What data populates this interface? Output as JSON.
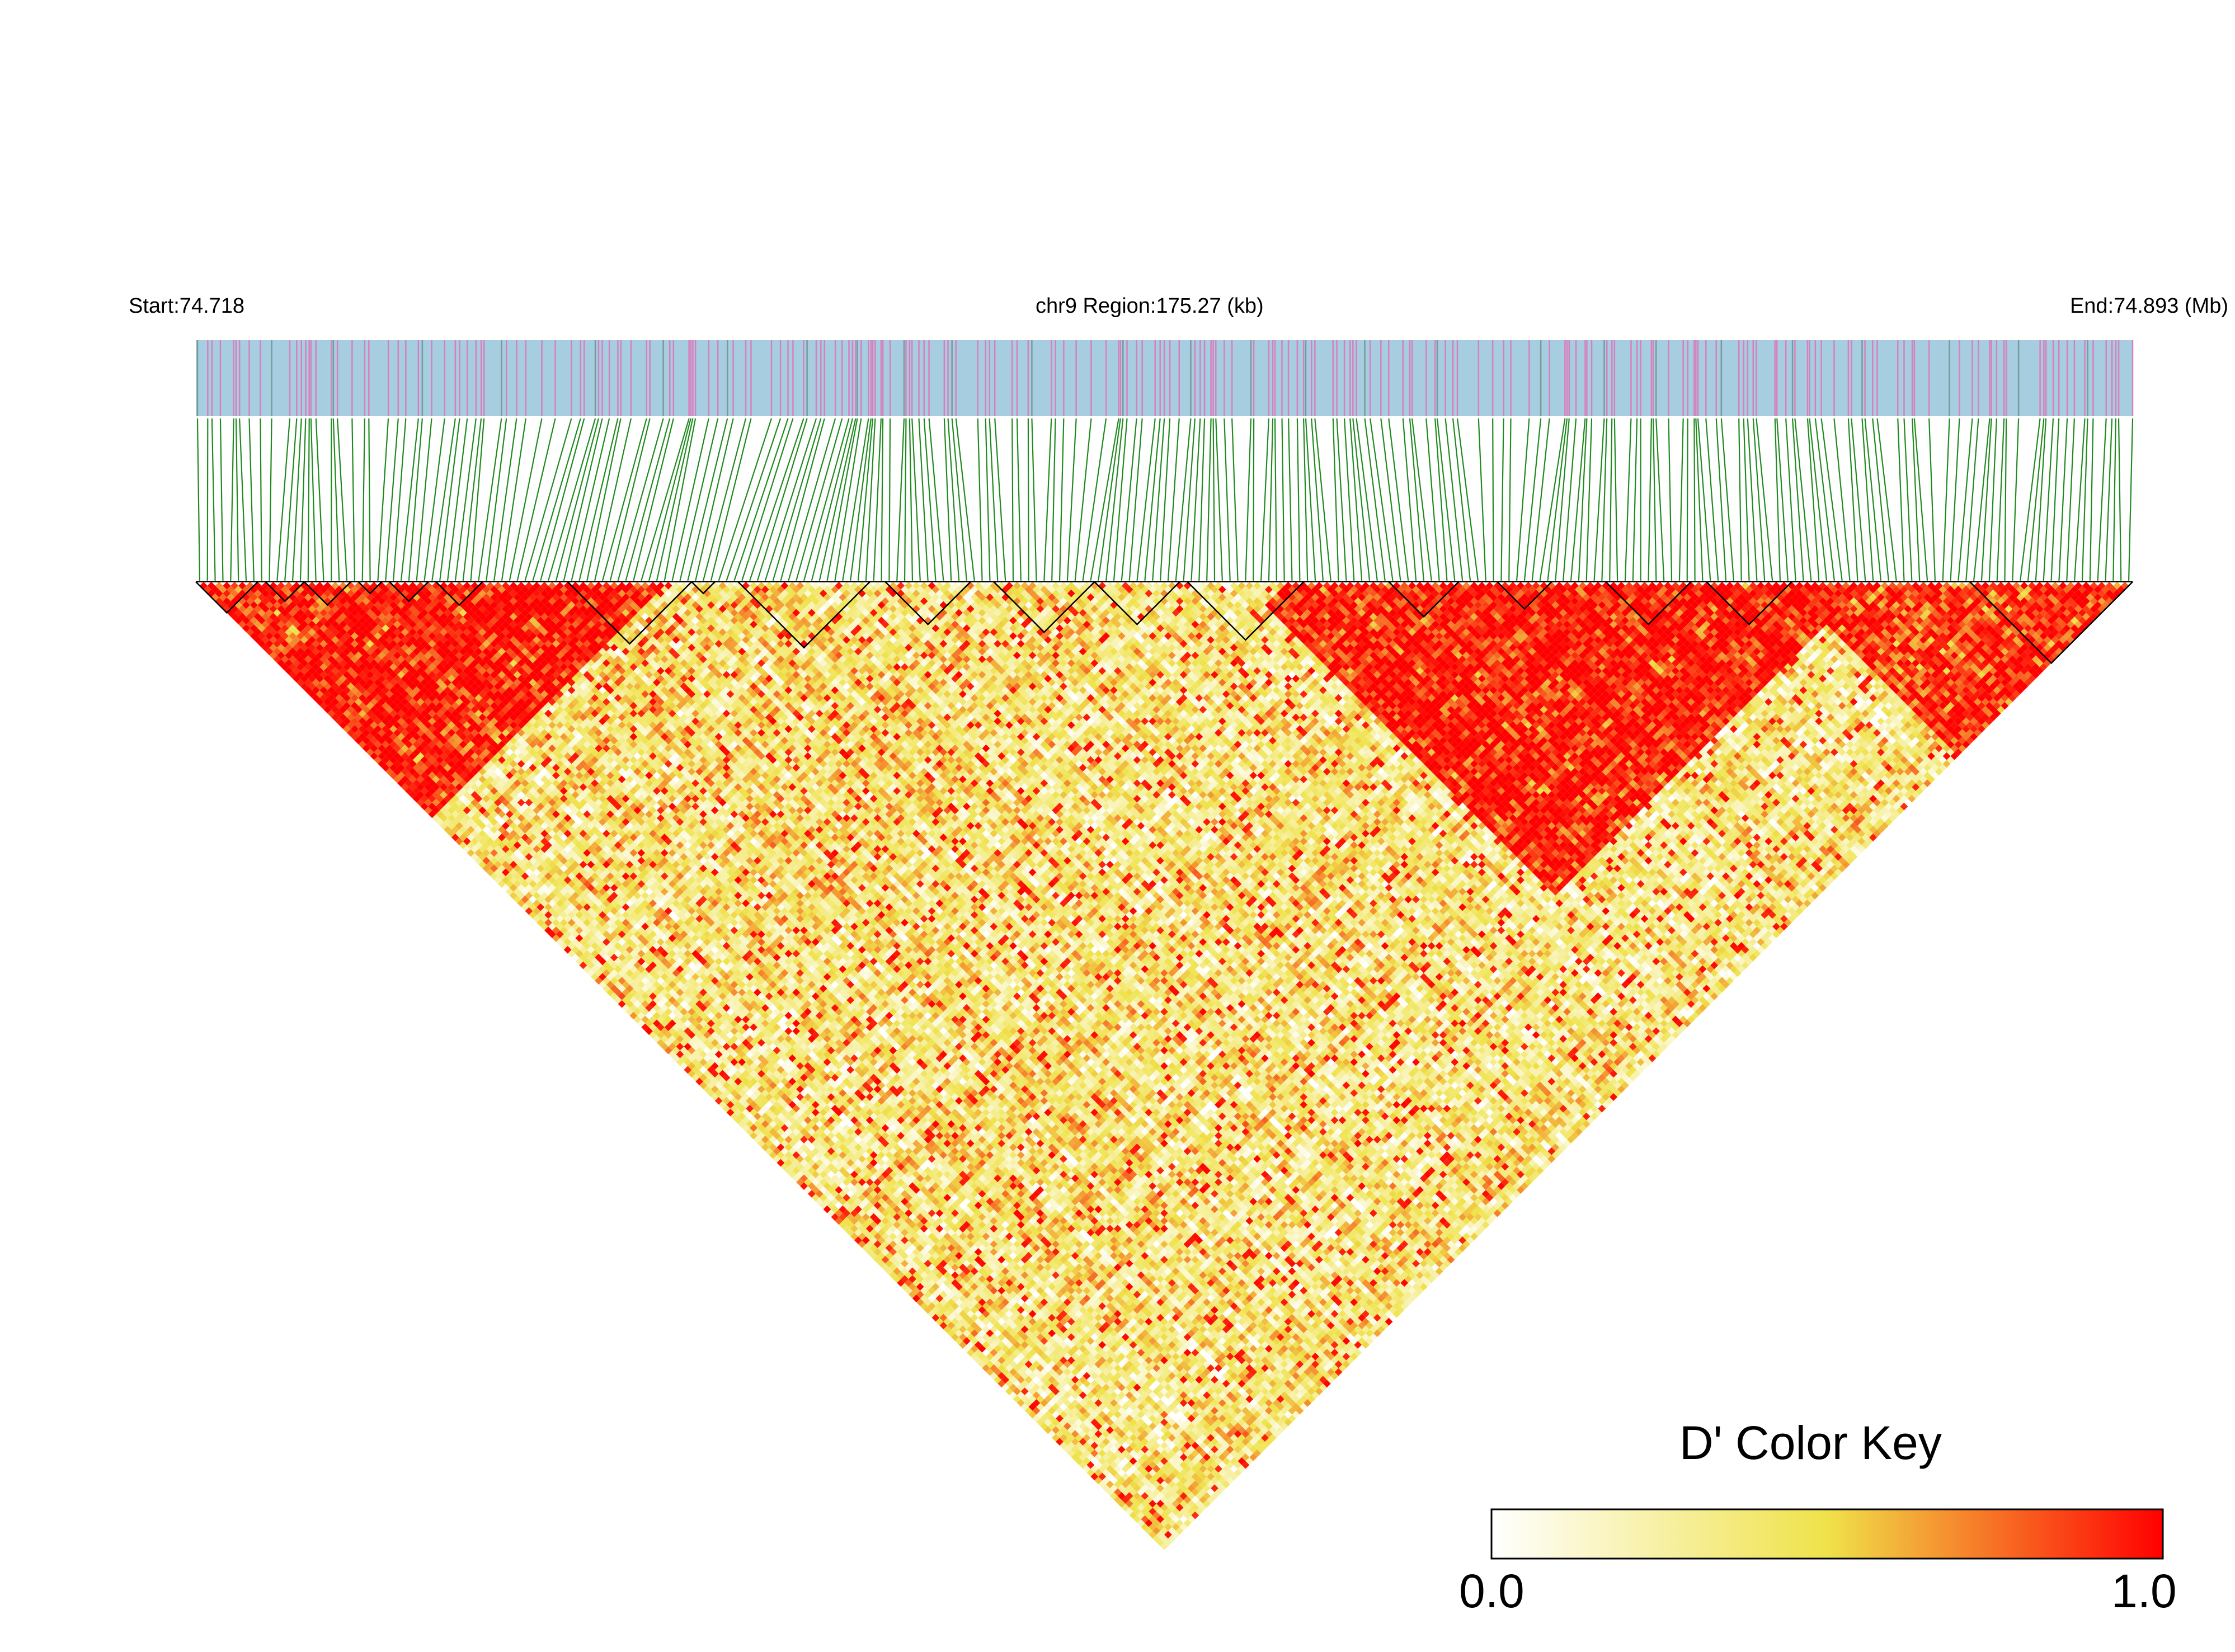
{
  "header": {
    "start": "Start:74.718",
    "region": "chr9 Region:175.27 (kb)",
    "end": "End:74.893 (Mb)"
  },
  "colors": {
    "track_bg": "#a6cde0",
    "snp_marker": "#d97fbf",
    "dense_marker": "#7a9a9a",
    "connector": "#1f8a1f",
    "low": "#ffffff",
    "mid": "#efe24a",
    "high": "#ff0000",
    "block_outline": "#000000"
  },
  "chart_data": {
    "type": "heatmap",
    "measure": "D'",
    "chromosome": "chr9",
    "region_start_mb": 74.718,
    "region_end_mb": 74.893,
    "region_length_kb": 175.27,
    "snp_count": 250,
    "value_range": [
      0.0,
      1.0
    ],
    "color_scale": [
      "#ffffff",
      "#efe24a",
      "#ff0000"
    ],
    "block_snp_ranges": [
      [
        0,
        8
      ],
      [
        9,
        14
      ],
      [
        14,
        20
      ],
      [
        21,
        24
      ],
      [
        25,
        30
      ],
      [
        31,
        37
      ],
      [
        48,
        64
      ],
      [
        64,
        67
      ],
      [
        70,
        87
      ],
      [
        89,
        100
      ],
      [
        103,
        116
      ],
      [
        116,
        127
      ],
      [
        128,
        143
      ],
      [
        154,
        163
      ],
      [
        168,
        175
      ],
      [
        182,
        193
      ],
      [
        195,
        206
      ],
      [
        229,
        250
      ]
    ],
    "ld_regions": [
      {
        "snps": [
          0,
          60
        ],
        "d_prime": 0.93
      },
      {
        "snps": [
          40,
          140
        ],
        "d_prime": 0.38
      },
      {
        "snps": [
          135,
          215
        ],
        "d_prime": 0.95
      },
      {
        "snps": [
          205,
          250
        ],
        "d_prime": 0.9
      },
      {
        "snps": [
          0,
          250
        ],
        "d_prime": 0.35
      }
    ],
    "color_key": {
      "title": "D' Color Key",
      "min_label": "0.0",
      "max_label": "1.0"
    }
  }
}
